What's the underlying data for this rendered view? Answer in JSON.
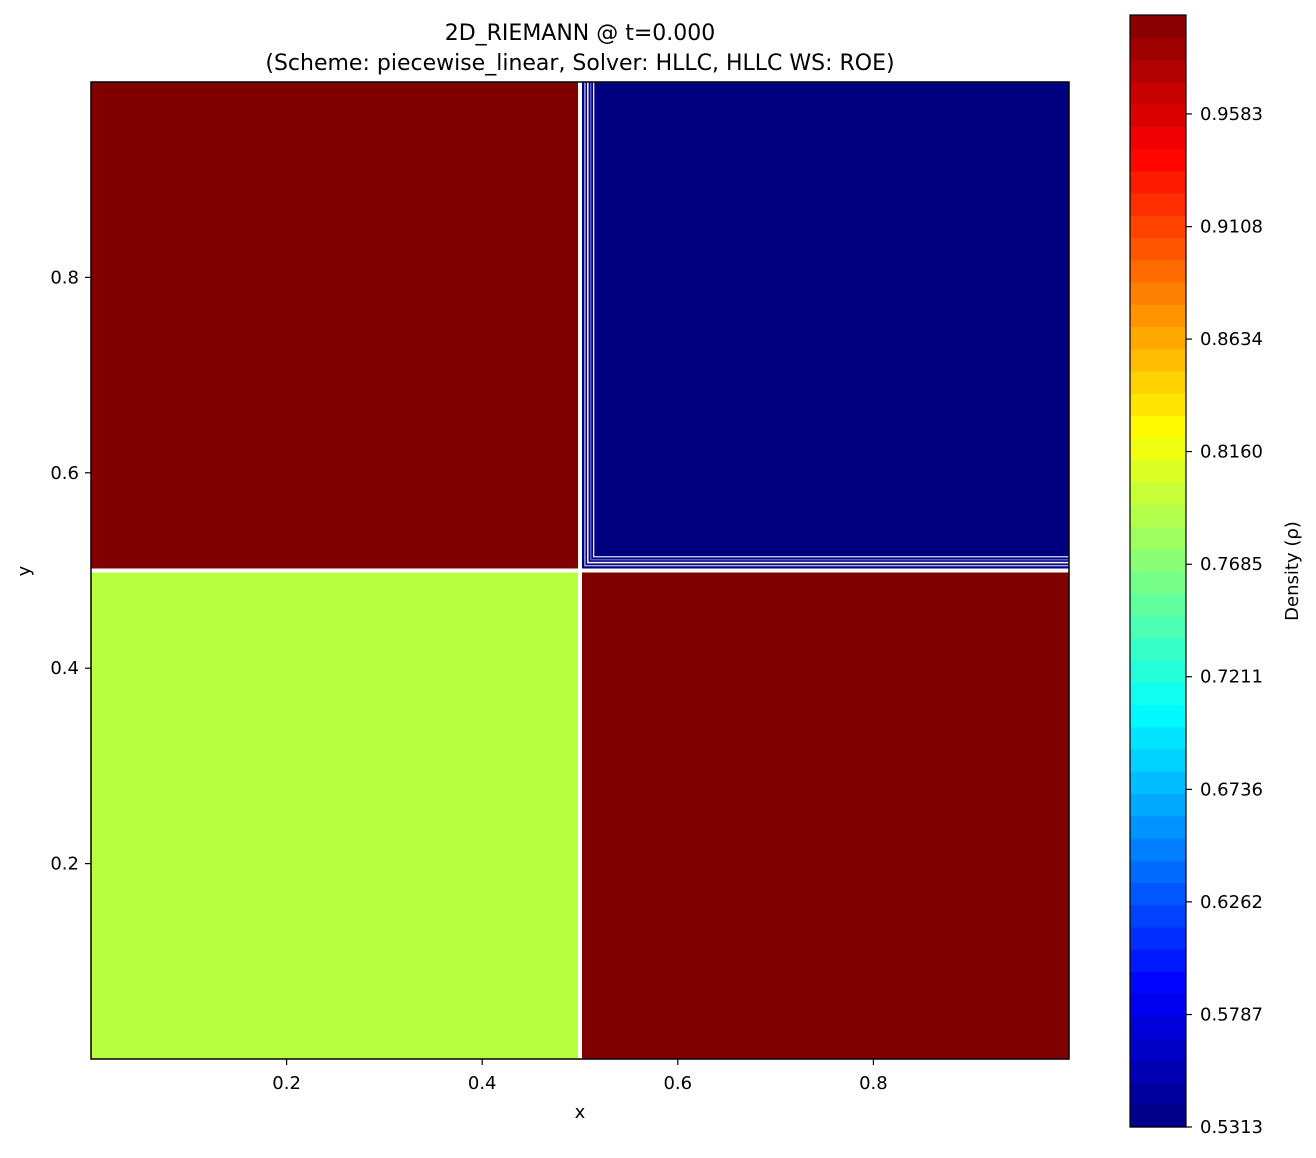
{
  "chart_data": {
    "type": "heatmap",
    "title": "2D_RIEMANN @ t=0.000",
    "subtitle": "(Scheme: piecewise_linear, Solver: HLLC, HLLC WS: ROE)",
    "xlabel": "x",
    "ylabel": "y",
    "xlim": [
      0.0,
      1.0
    ],
    "ylim": [
      0.0,
      1.0
    ],
    "xticks": [
      0.2,
      0.4,
      0.6,
      0.8
    ],
    "xtick_labels": [
      "0.2",
      "0.4",
      "0.6",
      "0.8"
    ],
    "yticks": [
      0.2,
      0.4,
      0.6,
      0.8
    ],
    "ytick_labels": [
      "0.2",
      "0.4",
      "0.6",
      "0.8"
    ],
    "grid": false,
    "colormap": "jet",
    "regions": [
      {
        "name": "top-left",
        "x": [
          0.0,
          0.5
        ],
        "y": [
          0.5,
          1.0
        ],
        "value": 1.0,
        "color": "#800000"
      },
      {
        "name": "top-right",
        "x": [
          0.5,
          1.0
        ],
        "y": [
          0.5,
          1.0
        ],
        "value": 0.5313,
        "color": "#000080"
      },
      {
        "name": "bottom-left",
        "x": [
          0.0,
          0.5
        ],
        "y": [
          0.0,
          0.5
        ],
        "value": 0.8,
        "color": "#b8ff3e"
      },
      {
        "name": "bottom-right",
        "x": [
          0.5,
          1.0
        ],
        "y": [
          0.0,
          0.5
        ],
        "value": 1.0,
        "color": "#800000"
      }
    ],
    "colorbar": {
      "label": "Density (ρ)",
      "min": 0.5313,
      "max": 1.0,
      "levels": 50,
      "ticks": [
        0.5313,
        0.5787,
        0.6262,
        0.6736,
        0.7211,
        0.7685,
        0.816,
        0.8634,
        0.9108,
        0.9583
      ],
      "tick_labels": [
        "0.5313",
        "0.5787",
        "0.6262",
        "0.6736",
        "0.7211",
        "0.7685",
        "0.8160",
        "0.8634",
        "0.9108",
        "0.9583"
      ]
    }
  }
}
